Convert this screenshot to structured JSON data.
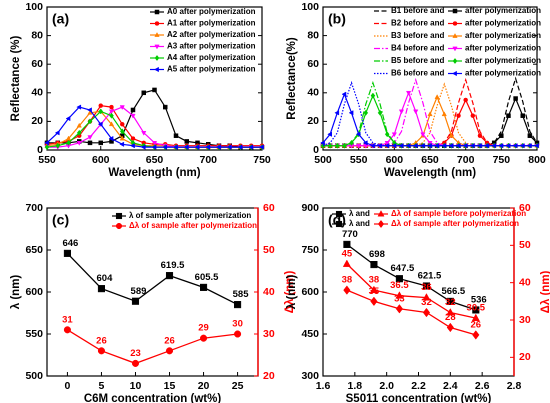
{
  "chart_data": [
    {
      "type": "line",
      "label": "(a)",
      "xlabel": "Wavelength (nm)",
      "ylabel": "Reflectance (%)",
      "xlim": [
        550,
        750
      ],
      "xticks": [
        550,
        600,
        650,
        700,
        750
      ],
      "ylim": [
        0,
        100
      ],
      "yticks": [
        0,
        20,
        40,
        60,
        80,
        100
      ],
      "x": [
        550,
        560,
        570,
        580,
        590,
        600,
        610,
        620,
        630,
        640,
        650,
        660,
        670,
        680,
        690,
        700,
        710,
        720,
        730,
        740,
        750
      ],
      "series": [
        {
          "name": "A0 after polymerization",
          "color": "#000000",
          "marker": "square",
          "values": [
            5,
            5,
            5,
            6,
            5,
            5,
            6,
            10,
            28,
            40,
            42,
            30,
            10,
            6,
            5,
            4,
            3,
            3,
            2,
            2,
            2
          ]
        },
        {
          "name": "A1 after polymerization",
          "color": "#ff0000",
          "marker": "circle",
          "values": [
            4,
            5,
            6,
            10,
            20,
            31,
            30,
            18,
            8,
            5,
            4,
            4,
            3,
            3,
            3,
            3,
            3,
            3,
            3,
            3,
            3
          ]
        },
        {
          "name": "A2 after polymerization",
          "color": "#ff8000",
          "marker": "triangle",
          "values": [
            3,
            4,
            8,
            17,
            26,
            27,
            18,
            8,
            4,
            3,
            3,
            3,
            2,
            2,
            2,
            2,
            2,
            2,
            2,
            2,
            2
          ]
        },
        {
          "name": "A3 after polymerization",
          "color": "#ff00ff",
          "marker": "tri-down",
          "values": [
            2,
            2,
            3,
            5,
            9,
            18,
            27,
            30,
            24,
            12,
            5,
            3,
            2,
            2,
            2,
            2,
            2,
            2,
            2,
            2,
            2
          ]
        },
        {
          "name": "A4 after polymerization",
          "color": "#00cc00",
          "marker": "diamond",
          "values": [
            2,
            3,
            5,
            12,
            20,
            27,
            24,
            13,
            5,
            3,
            2,
            2,
            2,
            2,
            2,
            2,
            2,
            2,
            2,
            2,
            2
          ]
        },
        {
          "name": "A5 after polymerization",
          "color": "#0000ff",
          "marker": "tri-left",
          "values": [
            5,
            12,
            22,
            30,
            28,
            18,
            8,
            4,
            3,
            2,
            2,
            2,
            2,
            2,
            2,
            2,
            2,
            2,
            2,
            2,
            2
          ]
        }
      ]
    },
    {
      "type": "line",
      "label": "(b)",
      "xlabel": "Wavelength (nm)",
      "ylabel": "Reflectance(%)",
      "xlim": [
        500,
        800
      ],
      "xticks": [
        500,
        550,
        600,
        650,
        700,
        750,
        800
      ],
      "ylim": [
        0,
        100
      ],
      "yticks": [
        0,
        20,
        40,
        60,
        80,
        100
      ],
      "x": [
        500,
        510,
        520,
        530,
        540,
        550,
        560,
        570,
        580,
        590,
        600,
        610,
        620,
        630,
        640,
        650,
        660,
        670,
        680,
        690,
        700,
        710,
        720,
        730,
        740,
        750,
        760,
        770,
        780,
        790,
        800
      ],
      "series": [
        {
          "name": "B1 before and",
          "color": "#000000",
          "linestyle": "dashed",
          "values": [
            3,
            3,
            3,
            3,
            3,
            3,
            3,
            3,
            3,
            3,
            3,
            3,
            3,
            3,
            3,
            3,
            3,
            3,
            3,
            3,
            3,
            3,
            3,
            3,
            5,
            13,
            34,
            50,
            34,
            13,
            5
          ]
        },
        {
          "name": "after polymerization",
          "color": "#000000",
          "marker": "square",
          "values": [
            3,
            3,
            3,
            3,
            3,
            3,
            3,
            3,
            3,
            3,
            3,
            3,
            3,
            3,
            3,
            3,
            3,
            3,
            3,
            3,
            3,
            3,
            3,
            3,
            5,
            10,
            24,
            36,
            24,
            10,
            5
          ]
        },
        {
          "name": "B2 before and",
          "color": "#ff0000",
          "linestyle": "dashed",
          "values": [
            3,
            3,
            3,
            3,
            3,
            3,
            3,
            3,
            3,
            3,
            3,
            3,
            3,
            3,
            3,
            3,
            3,
            5,
            13,
            33,
            49,
            33,
            13,
            5,
            3,
            3,
            3,
            3,
            3,
            3,
            3
          ]
        },
        {
          "name": "after polymerization",
          "color": "#ff0000",
          "marker": "circle",
          "values": [
            3,
            3,
            3,
            3,
            3,
            3,
            3,
            3,
            3,
            3,
            3,
            3,
            3,
            3,
            3,
            3,
            3,
            5,
            10,
            24,
            35,
            24,
            10,
            5,
            3,
            3,
            3,
            3,
            3,
            3,
            3
          ]
        },
        {
          "name": "B3 before and",
          "color": "#ff8000",
          "linestyle": "dotted",
          "values": [
            3,
            3,
            3,
            3,
            3,
            3,
            3,
            3,
            3,
            3,
            3,
            3,
            3,
            3,
            5,
            12,
            31,
            46,
            31,
            12,
            5,
            3,
            3,
            3,
            3,
            3,
            3,
            3,
            3,
            3,
            3
          ]
        },
        {
          "name": "after polymerization",
          "color": "#ff8000",
          "marker": "triangle",
          "values": [
            3,
            3,
            3,
            3,
            3,
            3,
            3,
            3,
            3,
            3,
            3,
            3,
            3,
            5,
            10,
            25,
            37,
            25,
            10,
            5,
            3,
            3,
            3,
            3,
            3,
            3,
            3,
            3,
            3,
            3,
            3
          ]
        },
        {
          "name": "B4 before and",
          "color": "#ff00ff",
          "linestyle": "dash-dot",
          "values": [
            3,
            3,
            3,
            3,
            3,
            3,
            3,
            3,
            3,
            3,
            5,
            13,
            33,
            49,
            33,
            13,
            5,
            3,
            3,
            3,
            3,
            3,
            3,
            3,
            3,
            3,
            3,
            3,
            3,
            3,
            3
          ]
        },
        {
          "name": "after polymerization",
          "color": "#ff00ff",
          "marker": "tri-down",
          "values": [
            3,
            3,
            3,
            3,
            3,
            3,
            3,
            3,
            3,
            5,
            11,
            27,
            40,
            27,
            11,
            5,
            3,
            3,
            3,
            3,
            3,
            3,
            3,
            3,
            3,
            3,
            3,
            3,
            3,
            3,
            3
          ]
        },
        {
          "name": "B5 before and",
          "color": "#00cc00",
          "linestyle": "dash-dot",
          "values": [
            3,
            3,
            3,
            3,
            5,
            12,
            32,
            47,
            32,
            12,
            5,
            3,
            3,
            3,
            3,
            3,
            3,
            3,
            3,
            3,
            3,
            3,
            3,
            3,
            3,
            3,
            3,
            3,
            3,
            3,
            3
          ]
        },
        {
          "name": "after polymerization",
          "color": "#00cc00",
          "marker": "diamond",
          "values": [
            3,
            3,
            3,
            3,
            5,
            11,
            26,
            38,
            26,
            11,
            5,
            3,
            3,
            3,
            3,
            3,
            3,
            3,
            3,
            3,
            3,
            3,
            3,
            3,
            3,
            3,
            3,
            3,
            3,
            3,
            3
          ]
        },
        {
          "name": "B6 before and",
          "color": "#0000ff",
          "linestyle": "dotted",
          "values": [
            3,
            5,
            12,
            32,
            47,
            32,
            12,
            5,
            3,
            3,
            3,
            3,
            3,
            3,
            3,
            3,
            3,
            3,
            3,
            3,
            3,
            3,
            3,
            3,
            3,
            3,
            3,
            3,
            3,
            3,
            3
          ]
        },
        {
          "name": "after polymerization",
          "color": "#0000ff",
          "marker": "tri-left",
          "values": [
            5,
            11,
            26,
            39,
            26,
            11,
            5,
            3,
            3,
            3,
            3,
            3,
            3,
            3,
            3,
            3,
            3,
            3,
            3,
            3,
            3,
            3,
            3,
            3,
            3,
            3,
            3,
            3,
            3,
            3,
            3
          ]
        }
      ]
    },
    {
      "type": "line",
      "label": "(c)",
      "xlabel": "C6M concentration (wt%)",
      "ylabel": "λ (nm)",
      "y2label": "Δλ (nm)",
      "xlim": [
        -3,
        28
      ],
      "xticks": [
        0,
        5,
        10,
        15,
        20,
        25
      ],
      "ylim": [
        500,
        700
      ],
      "yticks": [
        500,
        550,
        600,
        650,
        700
      ],
      "y2lim": [
        20,
        60
      ],
      "y2ticks": [
        20,
        30,
        40,
        50,
        60
      ],
      "y2color": "#ff0000",
      "x": [
        0,
        5,
        10,
        15,
        20,
        25
      ],
      "series": [
        {
          "name": "λ of sample after polymerization",
          "color": "#000000",
          "marker": "square",
          "values": [
            646,
            604,
            589,
            619.5,
            605.5,
            585
          ]
        },
        {
          "name": "Δλ of sample after polymerization",
          "color": "#ff0000",
          "marker": "circle",
          "axis": "y2",
          "values": [
            31,
            26,
            23,
            26,
            29,
            30
          ]
        }
      ]
    },
    {
      "type": "line",
      "label": "(d)",
      "xlabel": "S5011 concentration (wt%)",
      "ylabel": "λ (nm)",
      "y2label": "Δλ (nm)",
      "xlim": [
        1.6,
        2.8
      ],
      "xticks": [
        1.6,
        1.8,
        {
          "value": 2,
          "label": "2.0"
        },
        2.2,
        2.4,
        2.6,
        2.8
      ],
      "ylim": [
        300,
        900
      ],
      "yticks": [
        300,
        450,
        600,
        750,
        900
      ],
      "y2lim": [
        15,
        60
      ],
      "y2ticks": [
        20,
        30,
        40,
        50,
        60
      ],
      "y2color": "#ff0000",
      "x": [
        1.75,
        1.92,
        2.08,
        2.25,
        2.4,
        2.56
      ],
      "legend_rows": [
        [
          "λ and",
          "Δλ of sample before polymerization"
        ],
        [
          "λ and",
          "Δλ of sample after polymerization"
        ]
      ],
      "series": [
        {
          "color": "#000000",
          "marker": "square",
          "values": [
            770,
            698,
            647.5,
            621.5,
            566.5,
            536
          ]
        },
        {
          "color": "#ff0000",
          "marker": "triangle",
          "axis": "y2",
          "values": [
            45,
            38,
            36.5,
            36,
            32,
            30.5
          ]
        },
        {
          "color": "#ff0000",
          "marker": "diamond",
          "axis": "y2",
          "values": [
            38,
            35,
            33,
            32,
            28,
            26
          ]
        }
      ]
    }
  ]
}
